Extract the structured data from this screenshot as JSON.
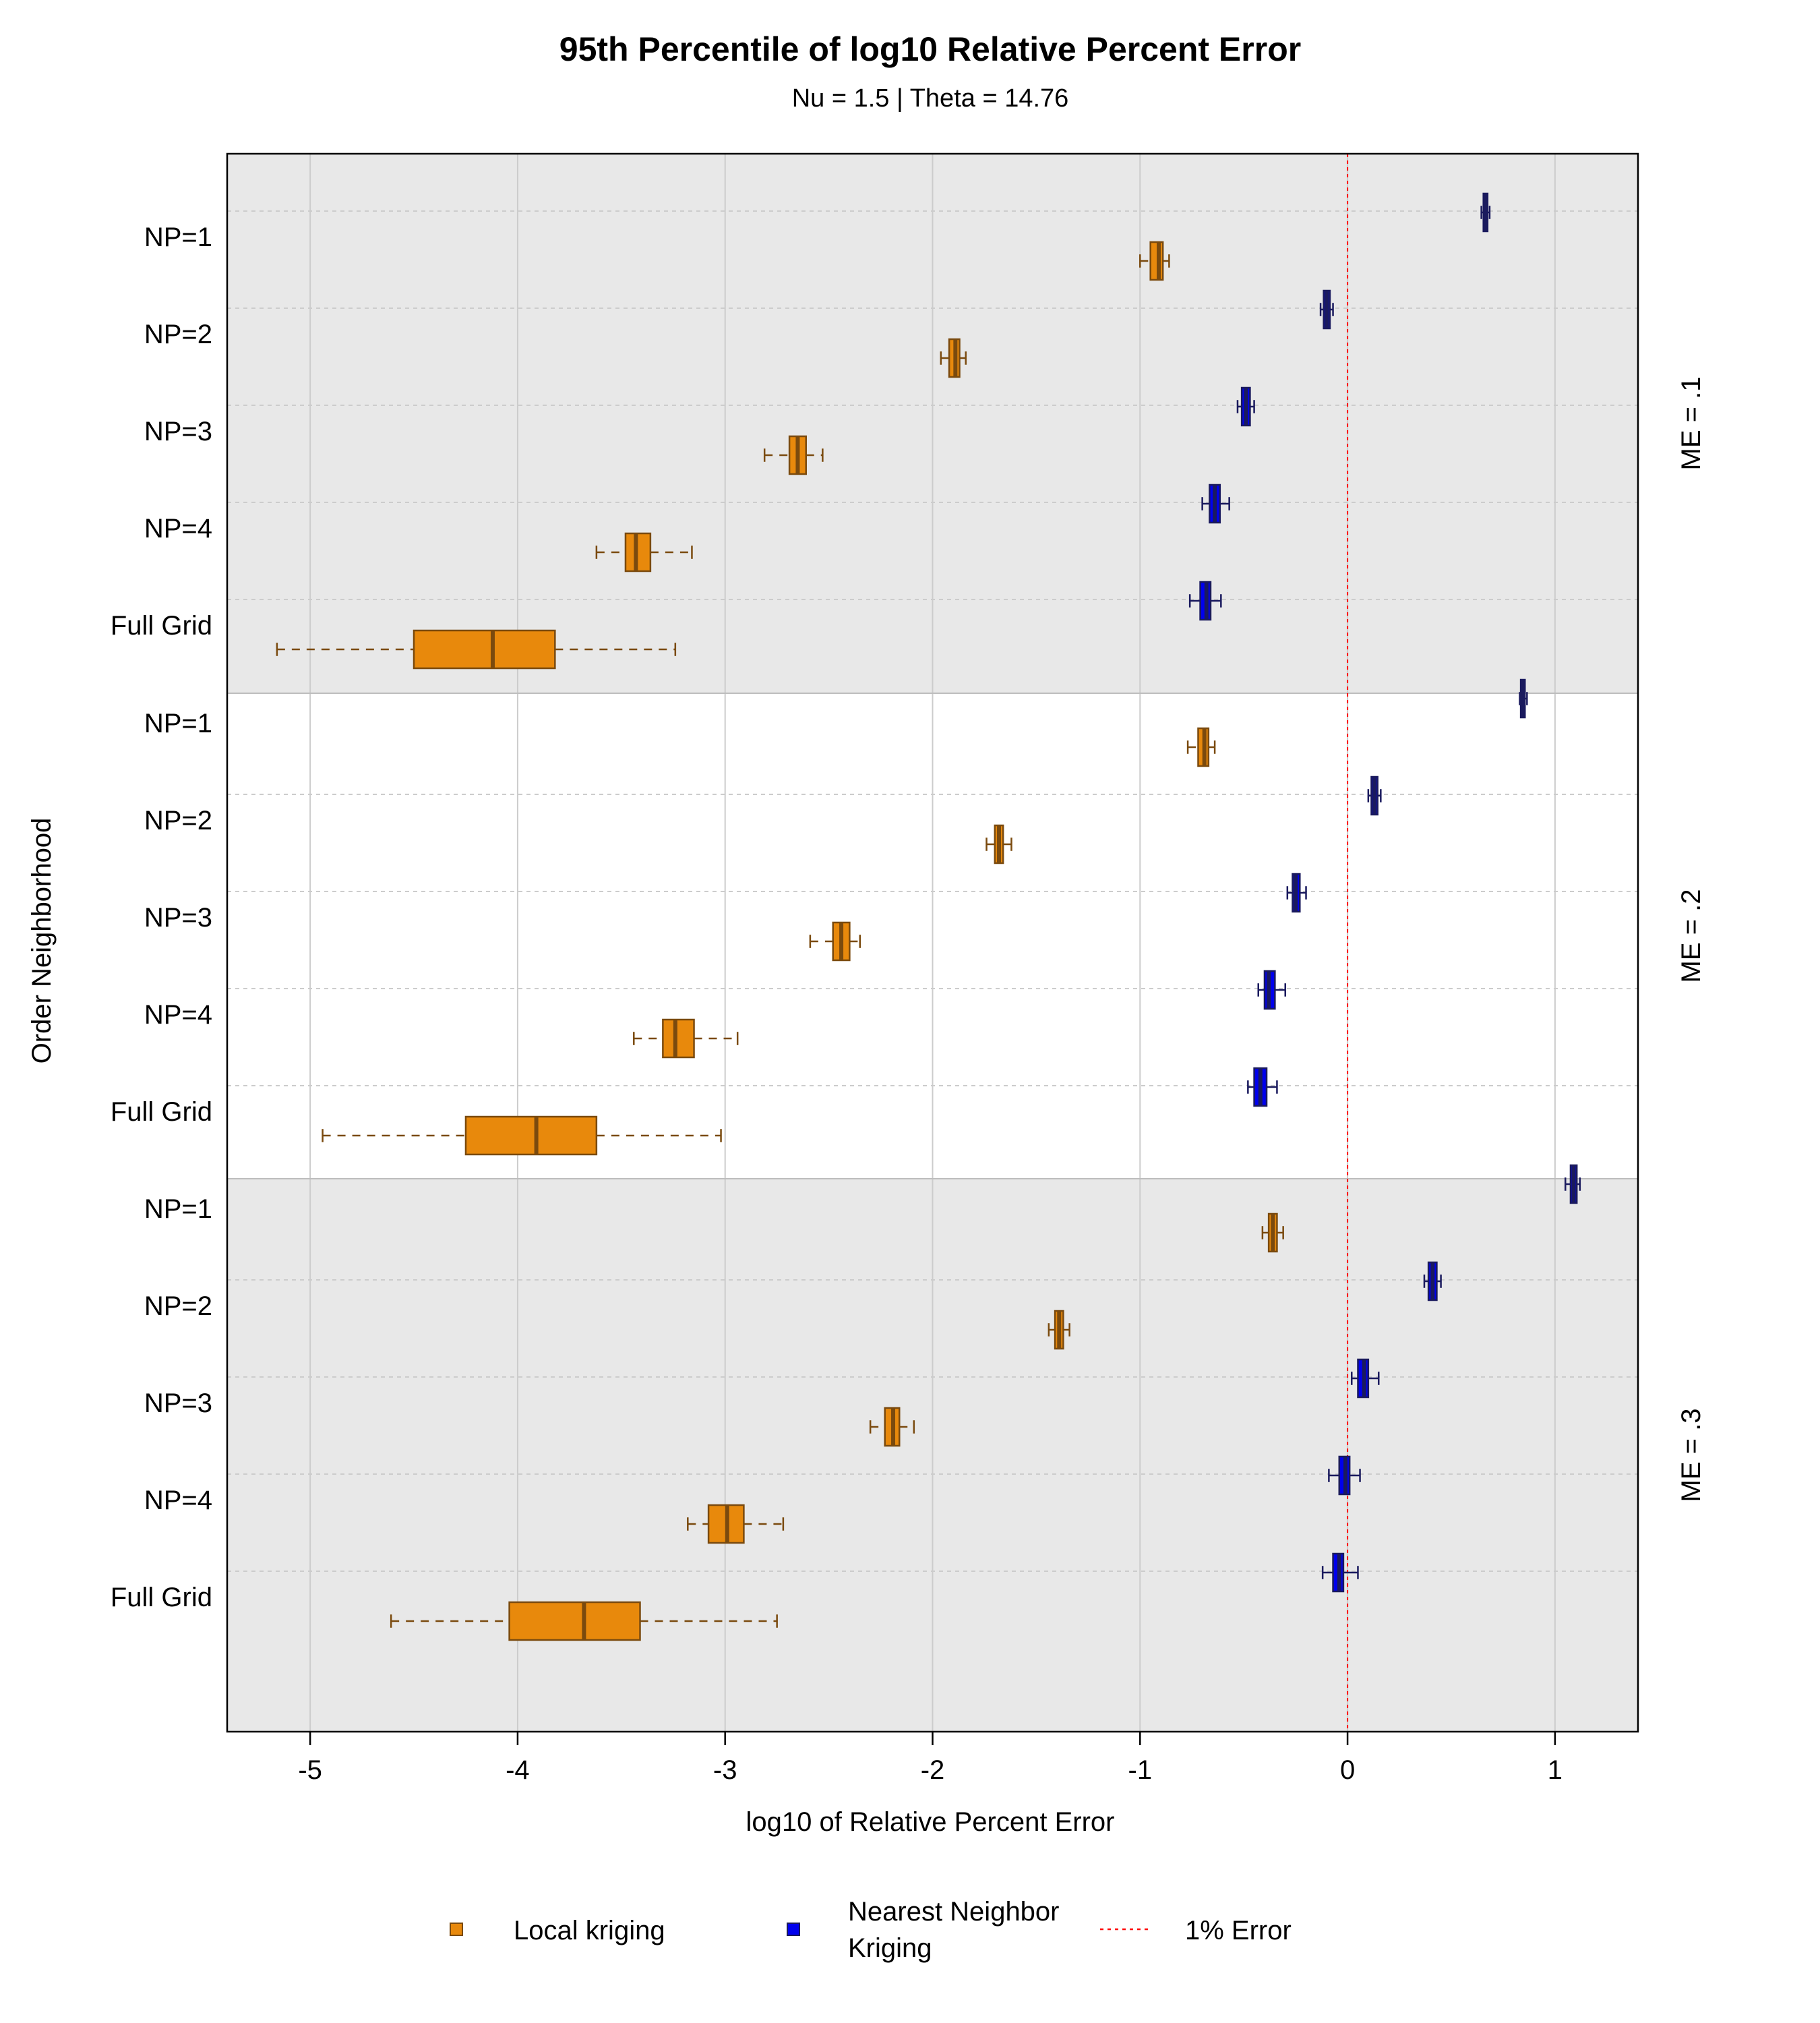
{
  "chart_data": {
    "type": "boxplot",
    "title": "95th Percentile of log10 Relative Percent Error",
    "subtitle": "Nu = 1.5 | Theta = 14.76",
    "xlabel": "log10 of Relative Percent Error",
    "ylabel": "Order Neighborhood",
    "xlim": [
      -5.4,
      1.4
    ],
    "x_ticks": [
      "-5",
      "-4",
      "-3",
      "-2",
      "-1",
      "0",
      "1"
    ],
    "reference_line": {
      "x": 0,
      "label": "1% Error",
      "color": "#ff0000"
    },
    "categories": [
      "NP=1",
      "NP=2",
      "NP=3",
      "NP=4",
      "Full Grid"
    ],
    "colors": {
      "local_fill": "#e8890c",
      "local_line": "#7a4a0e",
      "nn_fill": "#0000ee",
      "nn_line": "#1a1a5e",
      "panel_gray": "#e8e8e8",
      "grid": "#cccccc"
    },
    "legend": {
      "local": "Local kriging",
      "nn_line1": "Nearest Neighbor",
      "nn_line2": "Kriging",
      "ref": "1% Error"
    },
    "panels": [
      {
        "label": "ME = .1",
        "shaded": true,
        "local": [
          {
            "min": -1.0,
            "q1": -0.95,
            "median": -0.91,
            "q3": -0.89,
            "max": -0.86
          },
          {
            "min": -1.96,
            "q1": -1.92,
            "median": -1.89,
            "q3": -1.87,
            "max": -1.84
          },
          {
            "min": -2.81,
            "q1": -2.69,
            "median": -2.65,
            "q3": -2.61,
            "max": -2.53
          },
          {
            "min": -3.62,
            "q1": -3.48,
            "median": -3.43,
            "q3": -3.36,
            "max": -3.16
          },
          {
            "min": -5.16,
            "q1": -4.5,
            "median": -4.12,
            "q3": -3.82,
            "max": -3.24
          }
        ],
        "nn": [
          {
            "min": 0.645,
            "q1": 0.655,
            "median": 0.665,
            "q3": 0.675,
            "max": 0.685
          },
          {
            "min": -0.13,
            "q1": -0.115,
            "median": -0.1,
            "q3": -0.085,
            "max": -0.07
          },
          {
            "min": -0.53,
            "q1": -0.51,
            "median": -0.49,
            "q3": -0.47,
            "max": -0.45
          },
          {
            "min": -0.7,
            "q1": -0.665,
            "median": -0.64,
            "q3": -0.615,
            "max": -0.57
          },
          {
            "min": -0.76,
            "q1": -0.71,
            "median": -0.68,
            "q3": -0.66,
            "max": -0.61
          }
        ]
      },
      {
        "label": "ME = .2",
        "shaded": false,
        "local": [
          {
            "min": -0.77,
            "q1": -0.72,
            "median": -0.69,
            "q3": -0.67,
            "max": -0.64
          },
          {
            "min": -1.74,
            "q1": -1.7,
            "median": -1.68,
            "q3": -1.66,
            "max": -1.62
          },
          {
            "min": -2.59,
            "q1": -2.48,
            "median": -2.44,
            "q3": -2.4,
            "max": -2.35
          },
          {
            "min": -3.44,
            "q1": -3.3,
            "median": -3.24,
            "q3": -3.15,
            "max": -2.94
          },
          {
            "min": -4.94,
            "q1": -4.25,
            "median": -3.91,
            "q3": -3.62,
            "max": -3.02
          }
        ],
        "nn": [
          {
            "min": 0.83,
            "q1": 0.835,
            "median": 0.845,
            "q3": 0.855,
            "max": 0.865
          },
          {
            "min": 0.1,
            "q1": 0.115,
            "median": 0.13,
            "q3": 0.145,
            "max": 0.16
          },
          {
            "min": -0.29,
            "q1": -0.265,
            "median": -0.25,
            "q3": -0.23,
            "max": -0.2
          },
          {
            "min": -0.43,
            "q1": -0.4,
            "median": -0.38,
            "q3": -0.35,
            "max": -0.3
          },
          {
            "min": -0.48,
            "q1": -0.45,
            "median": -0.42,
            "q3": -0.39,
            "max": -0.34
          }
        ]
      },
      {
        "label": "ME = .3",
        "shaded": true,
        "local": [
          {
            "min": -0.41,
            "q1": -0.38,
            "median": -0.36,
            "q3": -0.34,
            "max": -0.31
          },
          {
            "min": -1.44,
            "q1": -1.41,
            "median": -1.39,
            "q3": -1.37,
            "max": -1.34
          },
          {
            "min": -2.3,
            "q1": -2.23,
            "median": -2.19,
            "q3": -2.16,
            "max": -2.09
          },
          {
            "min": -3.18,
            "q1": -3.08,
            "median": -2.99,
            "q3": -2.91,
            "max": -2.72
          },
          {
            "min": -4.61,
            "q1": -4.04,
            "median": -3.68,
            "q3": -3.41,
            "max": -2.75
          }
        ],
        "nn": [
          {
            "min": 1.05,
            "q1": 1.075,
            "median": 1.09,
            "q3": 1.105,
            "max": 1.12
          },
          {
            "min": 0.37,
            "q1": 0.39,
            "median": 0.41,
            "q3": 0.43,
            "max": 0.45
          },
          {
            "min": 0.02,
            "q1": 0.05,
            "median": 0.08,
            "q3": 0.1,
            "max": 0.15
          },
          {
            "min": -0.09,
            "q1": -0.04,
            "median": -0.01,
            "q3": 0.01,
            "max": 0.06
          },
          {
            "min": -0.12,
            "q1": -0.07,
            "median": -0.04,
            "q3": -0.02,
            "max": 0.05
          }
        ]
      }
    ]
  }
}
